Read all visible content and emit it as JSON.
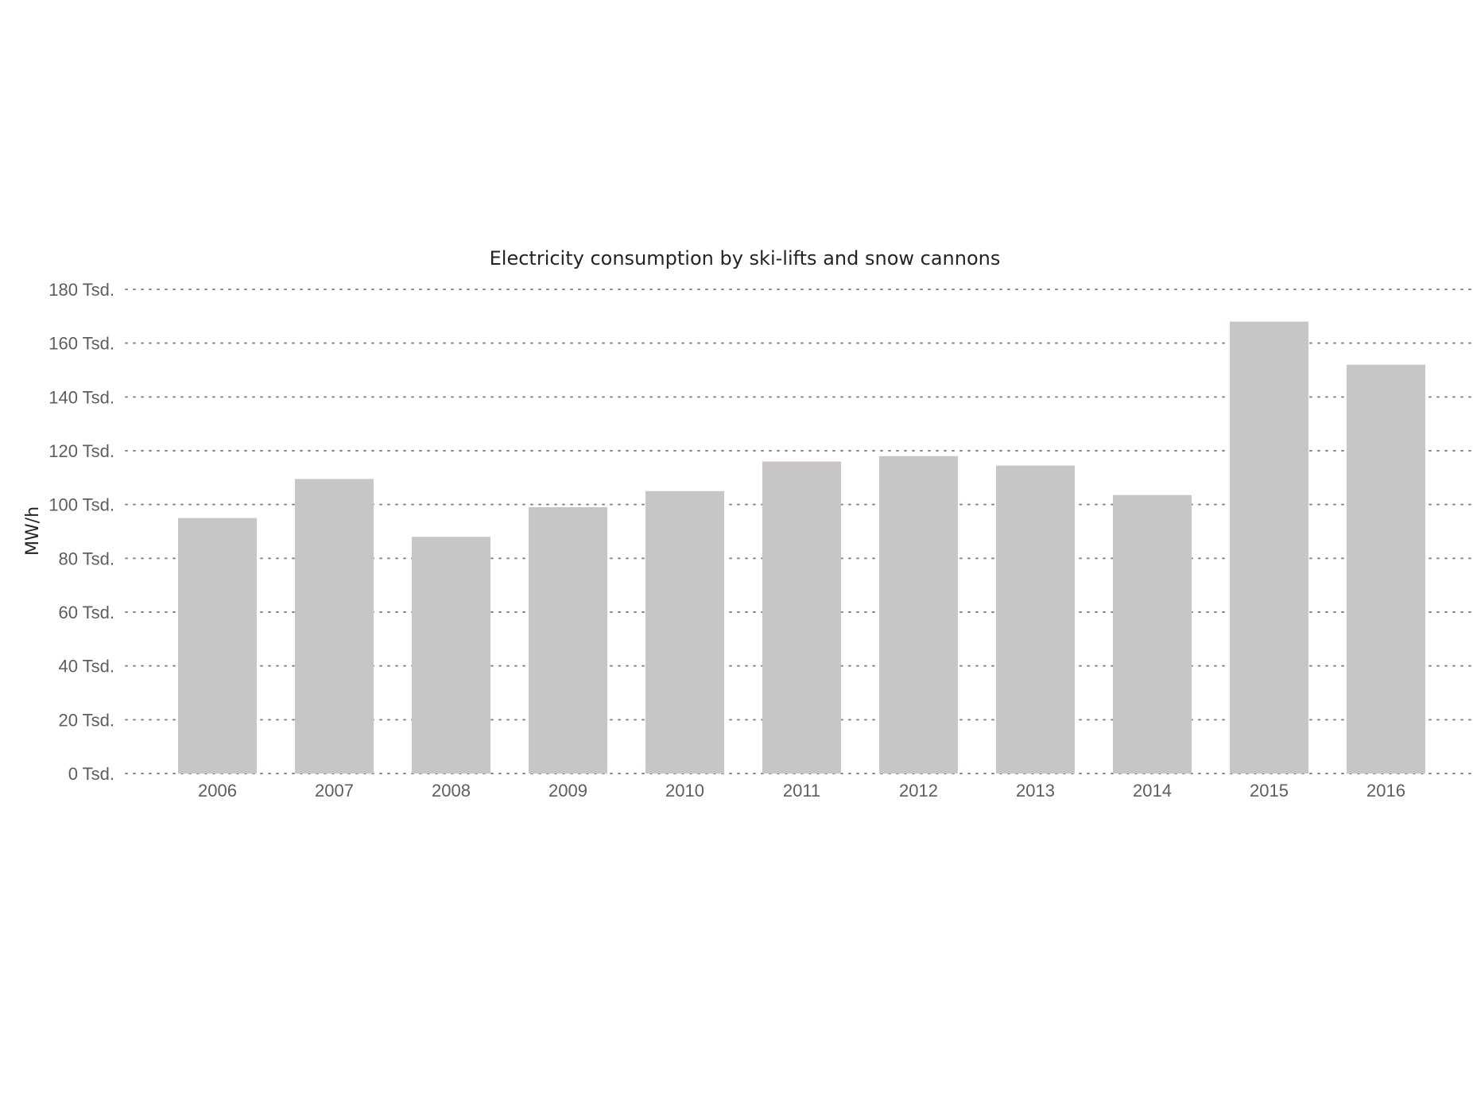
{
  "chart_data": {
    "type": "bar",
    "title": "Electricity consumption by ski-lifts and snow cannons",
    "ylabel": "MW/h",
    "xlabel": "",
    "categories": [
      "2006",
      "2007",
      "2008",
      "2009",
      "2010",
      "2011",
      "2012",
      "2013",
      "2014",
      "2015",
      "2016"
    ],
    "values": [
      95000,
      109500,
      88000,
      99000,
      105000,
      116000,
      118000,
      114500,
      103500,
      168000,
      152000
    ],
    "ylim": [
      0,
      180000
    ],
    "yticks": [
      {
        "value": 0,
        "label": "0 Tsd."
      },
      {
        "value": 20000,
        "label": "20 Tsd."
      },
      {
        "value": 40000,
        "label": "40 Tsd."
      },
      {
        "value": 60000,
        "label": "60 Tsd."
      },
      {
        "value": 80000,
        "label": "80 Tsd."
      },
      {
        "value": 100000,
        "label": "100 Tsd."
      },
      {
        "value": 120000,
        "label": "120 Tsd."
      },
      {
        "value": 140000,
        "label": "140 Tsd."
      },
      {
        "value": 160000,
        "label": "160 Tsd."
      },
      {
        "value": 180000,
        "label": "180 Tsd."
      }
    ],
    "grid": true,
    "bar_color": "#c8c6c4"
  }
}
